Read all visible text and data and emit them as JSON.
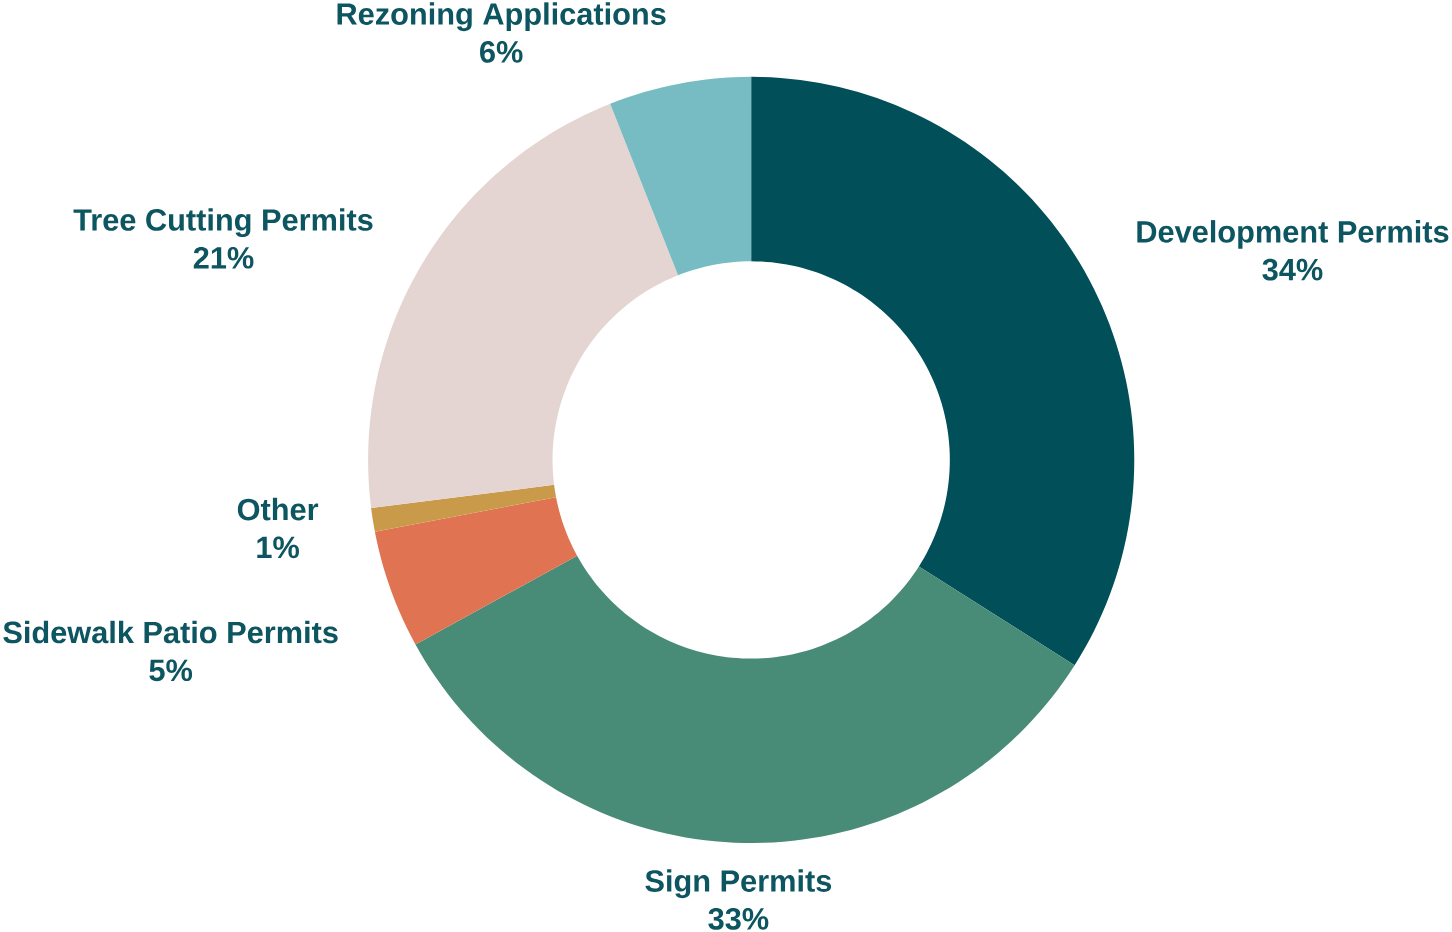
{
  "chart_data": {
    "type": "donut",
    "categories": [
      "Development Permits",
      "Sign Permits",
      "Sidewalk Patio Permits",
      "Other",
      "Tree Cutting Permits",
      "Rezoning Applications"
    ],
    "values": [
      34,
      33,
      5,
      1,
      21,
      6
    ],
    "value_labels": [
      "34%",
      "33%",
      "5%",
      "1%",
      "21%",
      "6%"
    ],
    "colors": [
      "#004f59",
      "#488c78",
      "#e07452",
      "#c99a4a",
      "#e5d5d2",
      "#76bcc2"
    ]
  }
}
